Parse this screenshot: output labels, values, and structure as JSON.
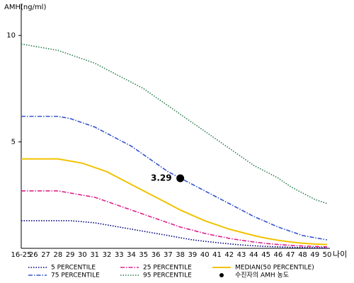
{
  "chart_data": {
    "type": "line",
    "y_label": "AMH(ng/ml)",
    "x_label": "나이",
    "categories": [
      "16-25",
      "26",
      "27",
      "28",
      "29",
      "30",
      "31",
      "32",
      "33",
      "34",
      "35",
      "36",
      "37",
      "38",
      "39",
      "40",
      "41",
      "42",
      "43",
      "44",
      "45",
      "46",
      "47",
      "48",
      "49",
      "50"
    ],
    "ylim": [
      0,
      11.5
    ],
    "yticks": [
      5,
      10
    ],
    "series": [
      {
        "name": "5 PERCENTILE",
        "color": "#000080",
        "style": "dotted",
        "values": [
          1.3,
          1.3,
          1.3,
          1.3,
          1.3,
          1.25,
          1.2,
          1.1,
          1.0,
          0.9,
          0.8,
          0.7,
          0.6,
          0.5,
          0.4,
          0.33,
          0.27,
          0.21,
          0.16,
          0.12,
          0.09,
          0.07,
          0.05,
          0.04,
          0.03,
          0.02
        ]
      },
      {
        "name": "25 PERCENTILE",
        "color": "#e0208a",
        "style": "dashdot",
        "values": [
          2.7,
          2.7,
          2.7,
          2.7,
          2.6,
          2.5,
          2.4,
          2.2,
          2.0,
          1.8,
          1.6,
          1.4,
          1.2,
          1.0,
          0.85,
          0.7,
          0.58,
          0.47,
          0.38,
          0.3,
          0.23,
          0.18,
          0.14,
          0.11,
          0.09,
          0.07
        ]
      },
      {
        "name": "MEDIAN(50 PERCENTILE)",
        "color": "#f2c200",
        "style": "solid",
        "values": [
          4.2,
          4.2,
          4.2,
          4.2,
          4.1,
          4.0,
          3.8,
          3.6,
          3.3,
          3.0,
          2.7,
          2.4,
          2.1,
          1.8,
          1.55,
          1.3,
          1.1,
          0.9,
          0.75,
          0.6,
          0.48,
          0.38,
          0.3,
          0.24,
          0.2,
          0.18
        ]
      },
      {
        "name": "75 PERCENTILE",
        "color": "#3355cc",
        "style": "dashdot",
        "values": [
          6.2,
          6.2,
          6.2,
          6.2,
          6.1,
          5.9,
          5.7,
          5.4,
          5.1,
          4.8,
          4.4,
          4.0,
          3.6,
          3.3,
          3.0,
          2.7,
          2.4,
          2.1,
          1.8,
          1.5,
          1.25,
          1.0,
          0.8,
          0.6,
          0.5,
          0.4
        ]
      },
      {
        "name": "95 PERCENTILE",
        "color": "#2e7d4f",
        "style": "dotted",
        "values": [
          9.6,
          9.5,
          9.4,
          9.3,
          9.1,
          8.9,
          8.7,
          8.4,
          8.1,
          7.8,
          7.5,
          7.1,
          6.7,
          6.3,
          5.9,
          5.5,
          5.1,
          4.7,
          4.3,
          3.9,
          3.6,
          3.3,
          2.9,
          2.6,
          2.3,
          2.1
        ]
      }
    ],
    "marker": {
      "name": "수진자의 AMH 농도",
      "category": "38",
      "value": 3.29,
      "color": "#000000"
    }
  }
}
